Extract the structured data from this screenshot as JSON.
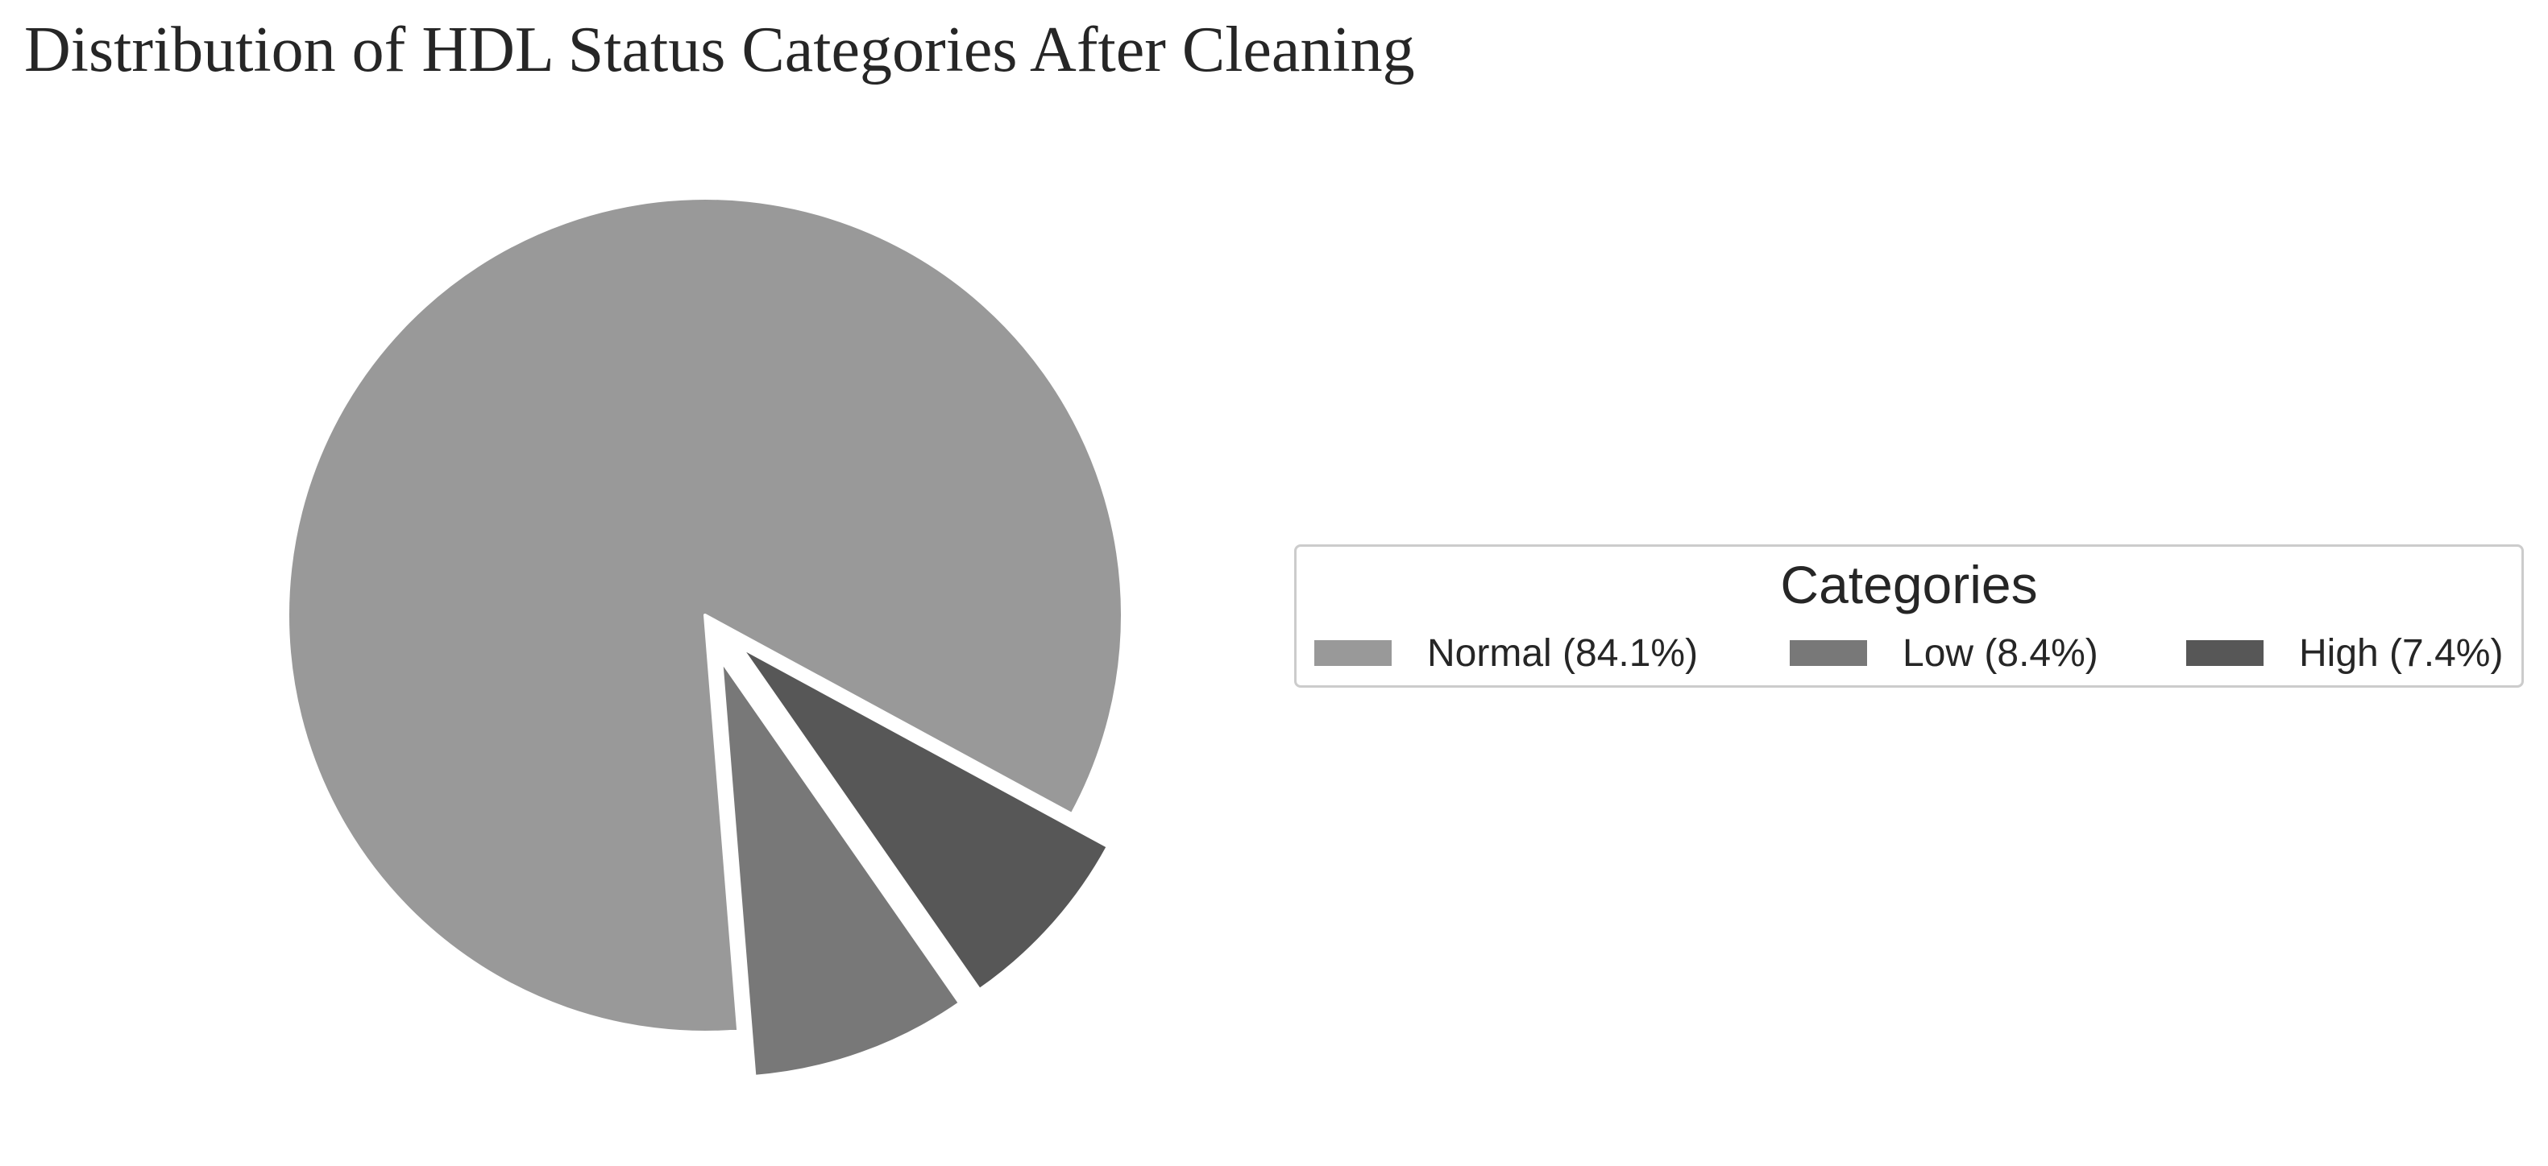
{
  "chart_data": {
    "type": "pie",
    "title": "Distribution of HDL Status Categories After Cleaning",
    "legend_title": "Categories",
    "legend_placement": "right",
    "slices": [
      {
        "label": "Normal (84.1%)",
        "value": 84.1,
        "color": "#999999",
        "exploded": false
      },
      {
        "label": "Low (8.4%)",
        "value": 8.4,
        "color": "#787878",
        "exploded": true
      },
      {
        "label": "High (7.4%)",
        "value": 7.4,
        "color": "#575757",
        "exploded": true
      }
    ]
  }
}
